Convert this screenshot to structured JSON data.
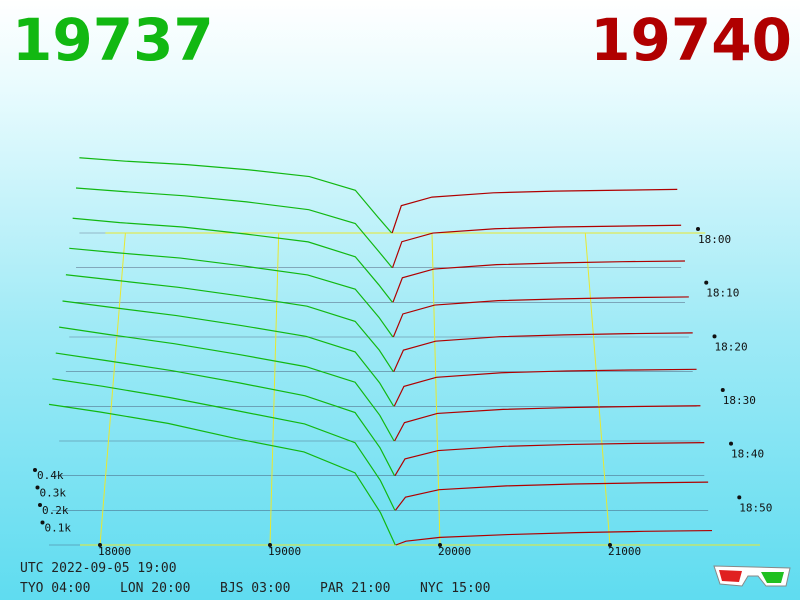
{
  "bid_price": "19737",
  "ask_price": "19740",
  "bid_color": "#12b812",
  "ask_color": "#b00000",
  "price_ticks": [
    18000,
    19000,
    20000,
    21000
  ],
  "time_ticks": [
    "18:00",
    "18:10",
    "18:20",
    "18:30",
    "18:40",
    "18:50"
  ],
  "depth_ticks": [
    {
      "value": 100,
      "label": "0.1k"
    },
    {
      "value": 200,
      "label": "0.2k"
    },
    {
      "value": 300,
      "label": "0.3k"
    },
    {
      "value": 400,
      "label": "0.4k"
    }
  ],
  "bid_prices": [
    17700,
    18000,
    18400,
    18800,
    19200,
    19500,
    19650,
    19737
  ],
  "ask_prices": [
    19740,
    19800,
    20000,
    20400,
    20800,
    21200,
    21600
  ],
  "slices": [
    {
      "bids": [
        440,
        420,
        400,
        370,
        330,
        250,
        90,
        0
      ],
      "asks": [
        0,
        160,
        210,
        235,
        245,
        250,
        255
      ]
    },
    {
      "bids": [
        460,
        440,
        415,
        380,
        335,
        255,
        95,
        0
      ],
      "asks": [
        0,
        150,
        200,
        225,
        235,
        240,
        245
      ]
    },
    {
      "bids": [
        480,
        455,
        430,
        390,
        345,
        260,
        100,
        0
      ],
      "asks": [
        0,
        140,
        190,
        215,
        225,
        232,
        236
      ]
    },
    {
      "bids": [
        500,
        475,
        445,
        400,
        350,
        270,
        110,
        0
      ],
      "asks": [
        0,
        130,
        180,
        205,
        215,
        222,
        226
      ]
    },
    {
      "bids": [
        540,
        510,
        470,
        420,
        365,
        280,
        120,
        0
      ],
      "asks": [
        0,
        120,
        170,
        195,
        205,
        212,
        216
      ]
    },
    {
      "bids": [
        580,
        545,
        500,
        445,
        385,
        300,
        130,
        0
      ],
      "asks": [
        0,
        110,
        160,
        185,
        195,
        200,
        204
      ]
    },
    {
      "bids": [
        620,
        580,
        530,
        470,
        405,
        320,
        140,
        0
      ],
      "asks": [
        0,
        100,
        150,
        172,
        182,
        188,
        192
      ]
    },
    {
      "bids": [
        660,
        620,
        565,
        500,
        430,
        340,
        150,
        0
      ],
      "asks": [
        0,
        90,
        135,
        158,
        168,
        174,
        178
      ]
    },
    {
      "bids": [
        700,
        660,
        600,
        530,
        460,
        360,
        160,
        0
      ],
      "asks": [
        0,
        70,
        110,
        130,
        140,
        146,
        150
      ]
    },
    {
      "bids": [
        740,
        700,
        640,
        560,
        490,
        380,
        170,
        0
      ],
      "asks": [
        0,
        20,
        40,
        55,
        65,
        72,
        76
      ]
    }
  ],
  "footer": {
    "utc": "UTC 2022-09-05 19:00",
    "cities": [
      "TYO 04:00",
      "LON 20:00",
      "BJS 03:00",
      "PAR 21:00",
      "NYC 15:00"
    ]
  }
}
